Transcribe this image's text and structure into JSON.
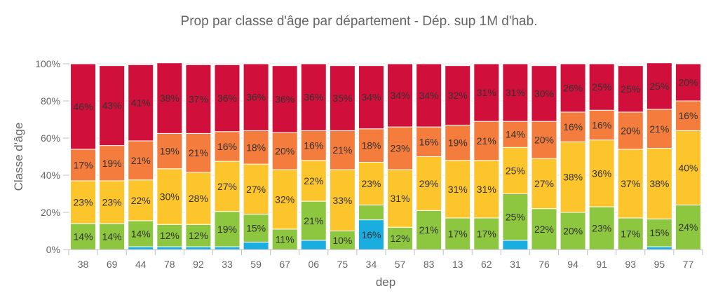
{
  "chart_data": {
    "type": "bar",
    "stacked": true,
    "normalized": true,
    "title": "Prop par classe d'âge  par département - Dép. sup 1M d'hab.",
    "xlabel": "dep",
    "ylabel": "Classe d'âge",
    "ylim": [
      0,
      100
    ],
    "y_ticks": [
      "0%",
      "20%",
      "40%",
      "60%",
      "80%",
      "100%"
    ],
    "grid": true,
    "legend": "none",
    "categories": [
      "38",
      "69",
      "44",
      "78",
      "92",
      "33",
      "59",
      "67",
      "06",
      "75",
      "34",
      "57",
      "83",
      "13",
      "62",
      "31",
      "76",
      "94",
      "91",
      "93",
      "95",
      "77"
    ],
    "series": [
      {
        "color": "#1aaee0",
        "values": [
          0,
          0,
          1.5,
          1.5,
          1.5,
          1.5,
          4,
          0,
          5,
          0,
          16,
          0,
          0,
          0,
          0,
          5,
          0,
          0,
          0,
          0,
          1.5,
          0
        ],
        "labels": [
          "",
          "",
          "",
          "",
          "",
          "",
          "",
          "",
          "",
          "",
          "16%",
          "",
          "",
          "",
          "",
          "",
          "",
          "",
          "",
          "",
          "",
          ""
        ]
      },
      {
        "color": "#8dc63f",
        "values": [
          14,
          14,
          14,
          12,
          12,
          19,
          15,
          11,
          21,
          10,
          8,
          12,
          21,
          17,
          17,
          25,
          22,
          20,
          23,
          17,
          15,
          24
        ],
        "labels": [
          "14%",
          "14%",
          "14%",
          "12%",
          "12%",
          "19%",
          "15%",
          "11%",
          "21%",
          "10%",
          "",
          "12%",
          "21%",
          "17%",
          "17%",
          "25%",
          "22%",
          "20%",
          "23%",
          "17%",
          "15%",
          "24%"
        ]
      },
      {
        "color": "#fdc52c",
        "values": [
          23,
          23,
          22,
          30,
          28,
          27,
          27,
          32,
          22,
          33,
          23,
          31,
          29,
          31,
          31,
          25,
          27,
          38,
          36,
          37,
          38,
          40
        ],
        "labels": [
          "23%",
          "23%",
          "22%",
          "30%",
          "28%",
          "27%",
          "27%",
          "32%",
          "22%",
          "33%",
          "23%",
          "31%",
          "29%",
          "31%",
          "31%",
          "25%",
          "27%",
          "38%",
          "36%",
          "37%",
          "38%",
          "40%"
        ]
      },
      {
        "color": "#f47c3c",
        "values": [
          17,
          19,
          21,
          19,
          21,
          16,
          18,
          20,
          16,
          21,
          18,
          23,
          16,
          19,
          21,
          14,
          20,
          16,
          16,
          20,
          21,
          16
        ],
        "labels": [
          "17%",
          "19%",
          "21%",
          "19%",
          "21%",
          "16%",
          "18%",
          "20%",
          "16%",
          "21%",
          "18%",
          "23%",
          "16%",
          "19%",
          "21%",
          "14%",
          "20%",
          "16%",
          "16%",
          "20%",
          "21%",
          "16%"
        ]
      },
      {
        "color": "#d0103a",
        "values": [
          46,
          43,
          41,
          38,
          37,
          36,
          36,
          36,
          36,
          35,
          34,
          34,
          34,
          32,
          31,
          31,
          30,
          26,
          25,
          25,
          25,
          20
        ],
        "labels": [
          "46%",
          "43%",
          "41%",
          "38%",
          "37%",
          "36%",
          "36%",
          "36%",
          "36%",
          "35%",
          "34%",
          "34%",
          "34%",
          "32%",
          "31%",
          "31%",
          "30%",
          "26%",
          "25%",
          "25%",
          "25%",
          "20%"
        ]
      }
    ]
  }
}
